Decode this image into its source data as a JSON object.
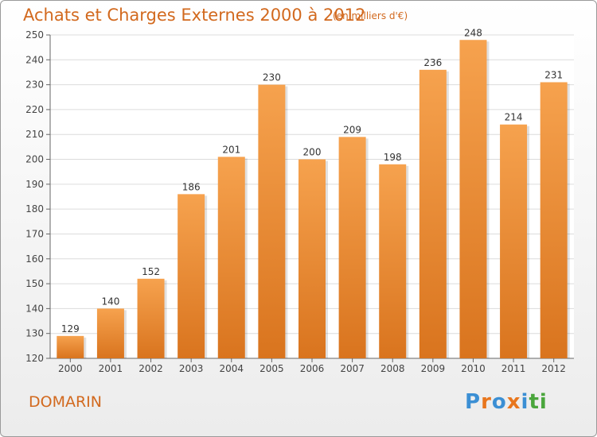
{
  "header": {
    "title": "Achats et Charges Externes 2000 à 2012",
    "unit": "(en milliers d'€)"
  },
  "footer": {
    "commune": "DOMARIN",
    "logo_letters": [
      "P",
      "r",
      "o",
      "x",
      "i",
      "t",
      "i"
    ],
    "logo_colors": [
      "#3b8fd4",
      "#e8761d",
      "#3b8fd4",
      "#e8761d",
      "#3b8fd4",
      "#4aa63c",
      "#4aa63c"
    ]
  },
  "chart_data": {
    "type": "bar",
    "categories": [
      "2000",
      "2001",
      "2002",
      "2003",
      "2004",
      "2005",
      "2006",
      "2007",
      "2008",
      "2009",
      "2010",
      "2011",
      "2012"
    ],
    "values": [
      129,
      140,
      152,
      186,
      201,
      230,
      200,
      209,
      198,
      236,
      248,
      214,
      231
    ],
    "ylim": [
      120,
      250
    ],
    "yticks": [
      120,
      130,
      140,
      150,
      160,
      170,
      180,
      190,
      200,
      210,
      220,
      230,
      240,
      250
    ],
    "grid": true,
    "bar_color_top": "#f6a24e",
    "bar_color_bottom": "#d9741e"
  }
}
